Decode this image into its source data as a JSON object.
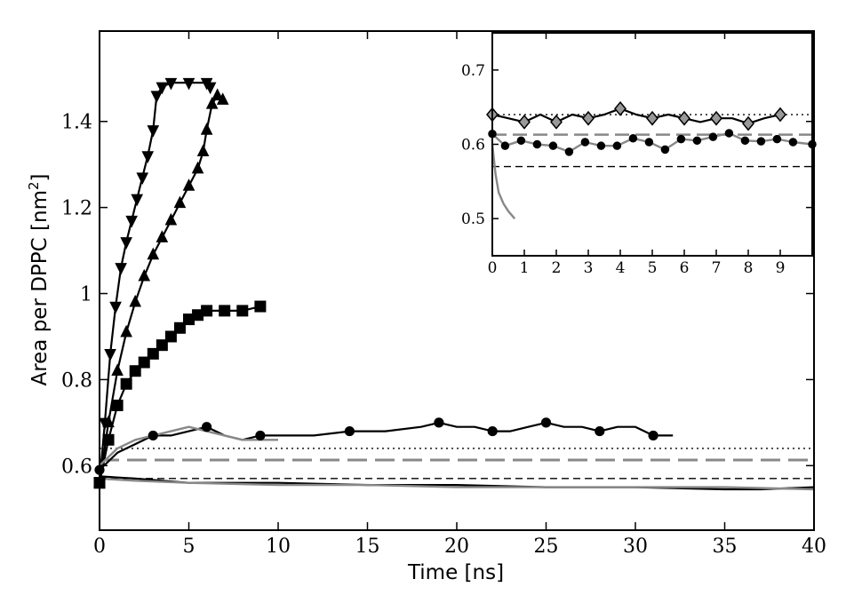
{
  "chart_data": [
    {
      "type": "line",
      "xlabel": "Time [ns]",
      "ylabel": "Area per DPPC [nm",
      "ylabel_superscript": "2",
      "ylabel_suffix": "]",
      "xlim": [
        0,
        40
      ],
      "ylim": [
        0.45,
        1.61
      ],
      "x_ticks": [
        0,
        5,
        10,
        15,
        20,
        25,
        30,
        35,
        40
      ],
      "x_tick_labels": [
        "0",
        "5",
        "10",
        "15",
        "20",
        "25",
        "30",
        "35",
        "40"
      ],
      "y_ticks": [
        0.6,
        0.8,
        1,
        1.2,
        1.4
      ],
      "y_tick_labels": [
        "0.6",
        "0.8",
        "1",
        "1.2",
        "1.4"
      ],
      "grid": false,
      "reference_lines": [
        {
          "y": 0.64,
          "style": "dotted",
          "color": "#000000"
        },
        {
          "y": 0.613,
          "style": "dashed",
          "color": "#888888"
        },
        {
          "y": 0.57,
          "style": "dashed",
          "color": "#000000"
        }
      ],
      "series": [
        {
          "marker": "triangle-down",
          "color": "#000000",
          "x": [
            0,
            0.3,
            0.6,
            0.9,
            1.2,
            1.5,
            1.8,
            2.1,
            2.4,
            2.7,
            3.0,
            3.2,
            3.5,
            4.0,
            5.0,
            6.0,
            6.2
          ],
          "y": [
            0.56,
            0.7,
            0.86,
            0.97,
            1.06,
            1.12,
            1.17,
            1.22,
            1.27,
            1.32,
            1.38,
            1.46,
            1.48,
            1.49,
            1.49,
            1.49,
            1.48
          ]
        },
        {
          "marker": "triangle-up",
          "color": "#000000",
          "x": [
            0,
            0.5,
            1.0,
            1.5,
            2.0,
            2.5,
            3.0,
            3.5,
            4.0,
            4.5,
            5.0,
            5.5,
            5.8,
            6.0,
            6.3,
            6.6,
            6.9
          ],
          "y": [
            0.56,
            0.7,
            0.82,
            0.91,
            0.98,
            1.04,
            1.09,
            1.13,
            1.17,
            1.21,
            1.25,
            1.29,
            1.33,
            1.38,
            1.44,
            1.46,
            1.45
          ]
        },
        {
          "marker": "square",
          "color": "#000000",
          "x": [
            0,
            0.5,
            1.0,
            1.5,
            2.0,
            2.5,
            3.0,
            3.5,
            4.0,
            4.5,
            5.0,
            5.5,
            6.0,
            7.0,
            8.0,
            9.0
          ],
          "y": [
            0.56,
            0.66,
            0.74,
            0.79,
            0.82,
            0.84,
            0.86,
            0.88,
            0.9,
            0.92,
            0.94,
            0.95,
            0.96,
            0.96,
            0.96,
            0.97
          ]
        },
        {
          "marker": "circle",
          "color": "#000000",
          "x": [
            0,
            1,
            2,
            3,
            4,
            5,
            6,
            7,
            8,
            9,
            10,
            12,
            14,
            16,
            18,
            19,
            20,
            21,
            22,
            23,
            24,
            25,
            26,
            27,
            28,
            29,
            30,
            31,
            32.1
          ],
          "y": [
            0.59,
            0.63,
            0.65,
            0.67,
            0.67,
            0.68,
            0.69,
            0.67,
            0.66,
            0.67,
            0.67,
            0.67,
            0.68,
            0.68,
            0.69,
            0.7,
            0.69,
            0.69,
            0.68,
            0.68,
            0.69,
            0.7,
            0.69,
            0.69,
            0.68,
            0.69,
            0.69,
            0.67,
            0.67
          ]
        },
        {
          "marker": "none",
          "color": "#888888",
          "x": [
            0,
            1,
            2,
            3,
            4,
            5,
            6,
            7,
            8,
            9,
            10
          ],
          "y": [
            0.6,
            0.64,
            0.66,
            0.67,
            0.68,
            0.69,
            0.68,
            0.67,
            0.66,
            0.66,
            0.66
          ]
        },
        {
          "marker": "none",
          "color": "#000000",
          "x": [
            0,
            2,
            5,
            8,
            10,
            15,
            20,
            25,
            30,
            35,
            37,
            40
          ],
          "y": [
            0.575,
            0.57,
            0.56,
            0.56,
            0.56,
            0.555,
            0.555,
            0.55,
            0.55,
            0.545,
            0.545,
            0.55
          ]
        },
        {
          "marker": "none",
          "color": "#888888",
          "x": [
            0,
            2,
            5,
            10,
            15,
            20,
            25,
            30,
            35,
            40
          ],
          "y": [
            0.57,
            0.565,
            0.56,
            0.555,
            0.555,
            0.55,
            0.55,
            0.55,
            0.55,
            0.545
          ]
        }
      ],
      "start_marker": {
        "x": 0,
        "y": 0.56,
        "marker": "square"
      }
    },
    {
      "type": "line",
      "inset": true,
      "xlim": [
        0,
        10
      ],
      "ylim": [
        0.45,
        0.75
      ],
      "x_ticks": [
        0,
        1,
        2,
        3,
        4,
        5,
        6,
        7,
        8,
        9
      ],
      "x_tick_labels": [
        "0",
        "1",
        "2",
        "3",
        "4",
        "5",
        "6",
        "7",
        "8",
        "9"
      ],
      "y_ticks": [
        0.5,
        0.6,
        0.7
      ],
      "y_tick_labels": [
        "0.5",
        "0.6",
        "0.7"
      ],
      "reference_lines": [
        {
          "y": 0.64,
          "style": "dotted",
          "color": "#000000"
        },
        {
          "y": 0.613,
          "style": "dashed",
          "color": "#888888"
        },
        {
          "y": 0.57,
          "style": "dashed",
          "color": "#000000"
        }
      ],
      "series": [
        {
          "marker": "diamond",
          "color": "#000000",
          "marker_fill": "#999999",
          "x": [
            0,
            0.5,
            1,
            1.5,
            2,
            2.5,
            3,
            3.5,
            4,
            4.5,
            5,
            5.5,
            6,
            6.5,
            7,
            7.5,
            8,
            8.5,
            9
          ],
          "y": [
            0.64,
            0.635,
            0.63,
            0.64,
            0.63,
            0.64,
            0.635,
            0.64,
            0.648,
            0.64,
            0.635,
            0.64,
            0.635,
            0.63,
            0.635,
            0.635,
            0.628,
            0.635,
            0.64
          ]
        },
        {
          "marker": "circle",
          "color": "#888888",
          "x": [
            0,
            0.4,
            0.9,
            1.4,
            1.9,
            2.4,
            2.9,
            3.4,
            3.9,
            4.4,
            4.9,
            5.4,
            5.9,
            6.4,
            6.9,
            7.4,
            7.9,
            8.4,
            8.9,
            9.4,
            10
          ],
          "y": [
            0.614,
            0.598,
            0.605,
            0.6,
            0.598,
            0.59,
            0.603,
            0.598,
            0.598,
            0.608,
            0.603,
            0.593,
            0.607,
            0.605,
            0.61,
            0.615,
            0.605,
            0.604,
            0.607,
            0.603,
            0.6
          ]
        },
        {
          "marker": "none",
          "color": "#888888",
          "x": [
            0,
            0.1,
            0.2,
            0.35,
            0.5,
            0.7
          ],
          "y": [
            0.6,
            0.56,
            0.535,
            0.52,
            0.51,
            0.5
          ]
        }
      ]
    }
  ]
}
